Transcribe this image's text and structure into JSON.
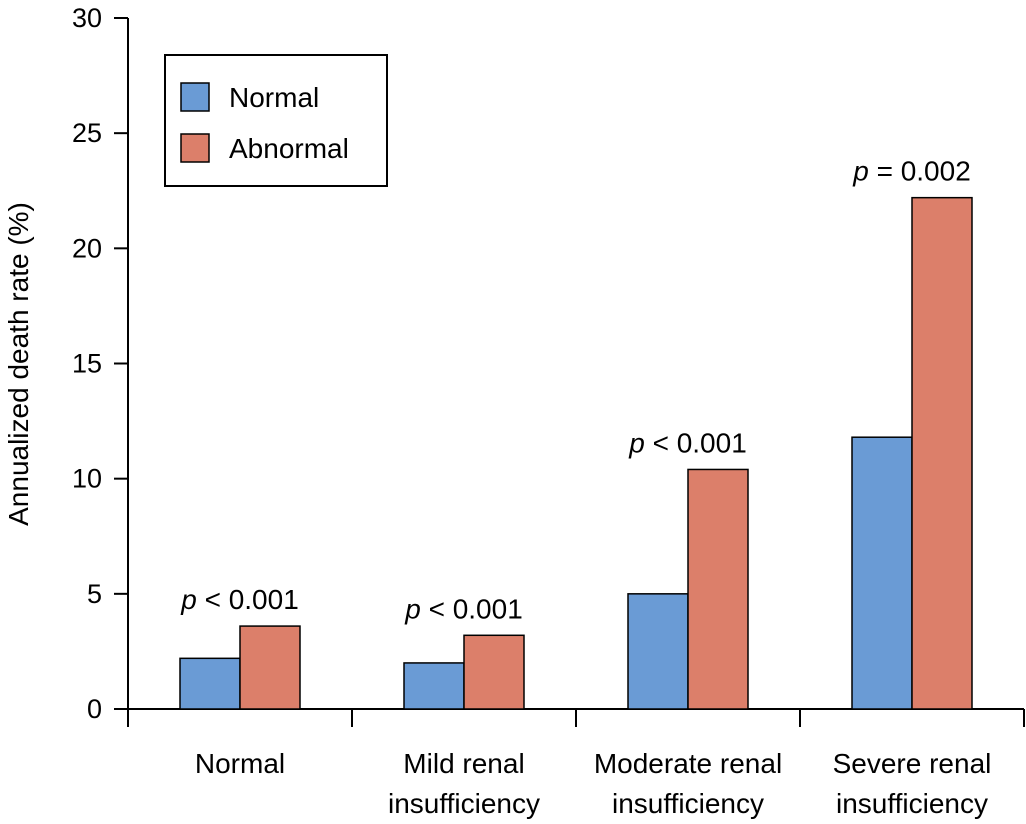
{
  "chart_data": {
    "type": "bar",
    "title": "",
    "xlabel": "",
    "ylabel": "Annualized death rate (%)",
    "ylim": [
      0,
      30
    ],
    "yticks": [
      0,
      5,
      10,
      15,
      20,
      25,
      30
    ],
    "grid": false,
    "legend_position": "top-left",
    "categories": [
      [
        "Normal"
      ],
      [
        "Mild renal",
        "insufficiency"
      ],
      [
        "Moderate renal",
        "insufficiency"
      ],
      [
        "Severe renal",
        "insufficiency"
      ]
    ],
    "series": [
      {
        "name": "Normal",
        "color": "#6a9bd5",
        "values": [
          2.2,
          2.0,
          5.0,
          11.8
        ]
      },
      {
        "name": "Abnormal",
        "color": "#dc7f6a",
        "values": [
          3.6,
          3.2,
          10.4,
          22.2
        ]
      }
    ],
    "p_values": [
      {
        "italic": "p",
        "rest": " < 0.001"
      },
      {
        "italic": "p",
        "rest": " < 0.001"
      },
      {
        "italic": "p",
        "rest": " < 0.001"
      },
      {
        "italic": "p",
        "rest": " = 0.002"
      }
    ]
  }
}
